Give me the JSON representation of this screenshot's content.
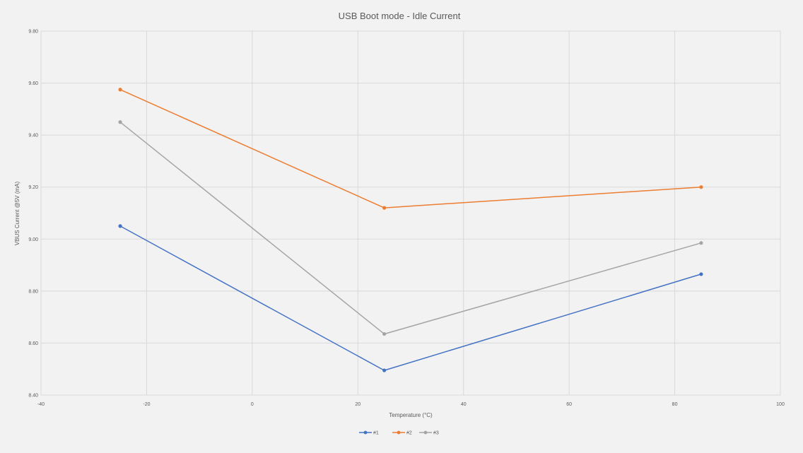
{
  "chart_data": {
    "type": "scatter",
    "title": "USB Boot mode - Idle Current",
    "xlabel": "Temperature (°C)",
    "ylabel": "VBUS Current @5V (mA)",
    "xlim": [
      -40,
      100
    ],
    "ylim": [
      8.4,
      9.8
    ],
    "x_ticks": [
      "-40",
      "-20",
      "0",
      "20",
      "40",
      "60",
      "80",
      "100"
    ],
    "y_ticks": [
      "8.40",
      "8.60",
      "8.80",
      "9.00",
      "9.20",
      "9.40",
      "9.60",
      "9.80"
    ],
    "grid": true,
    "legend_position": "bottom",
    "series": [
      {
        "name": "#1",
        "color": "#4472c4",
        "x": [
          -25,
          25,
          85
        ],
        "y": [
          9.05,
          8.495,
          8.865
        ]
      },
      {
        "name": "#2",
        "color": "#ed7d31",
        "x": [
          -25,
          25,
          85
        ],
        "y": [
          9.575,
          9.12,
          9.2
        ]
      },
      {
        "name": "#3",
        "color": "#a5a5a5",
        "x": [
          -25,
          25,
          85
        ],
        "y": [
          9.45,
          8.635,
          8.985
        ]
      }
    ]
  }
}
